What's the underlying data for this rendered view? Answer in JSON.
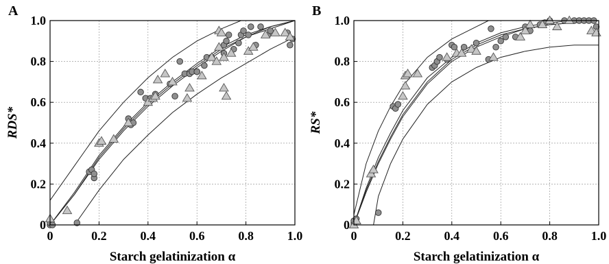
{
  "chart_data": [
    {
      "panel": "A",
      "type": "scatter",
      "xlabel": "Starch gelatinization α",
      "ylabel": "RDS*",
      "xlim": [
        0,
        1
      ],
      "ylim": [
        0,
        1
      ],
      "grid": true,
      "xticks": [
        "0",
        "0.2",
        "0.4",
        "0.6",
        "0.8",
        "1.0"
      ],
      "yticks": [
        "0",
        "0.2",
        "0.4",
        "0.6",
        "0.8",
        "1.0"
      ],
      "series": [
        {
          "marker": "circle",
          "points": [
            [
              0.0,
              0.0
            ],
            [
              0.0,
              0.01
            ],
            [
              0.01,
              0.0
            ],
            [
              0.11,
              0.01
            ],
            [
              0.16,
              0.26
            ],
            [
              0.17,
              0.27
            ],
            [
              0.18,
              0.23
            ],
            [
              0.18,
              0.25
            ],
            [
              0.32,
              0.52
            ],
            [
              0.33,
              0.49
            ],
            [
              0.33,
              0.5
            ],
            [
              0.34,
              0.5
            ],
            [
              0.37,
              0.65
            ],
            [
              0.39,
              0.62
            ],
            [
              0.41,
              0.62
            ],
            [
              0.43,
              0.64
            ],
            [
              0.49,
              0.69
            ],
            [
              0.51,
              0.63
            ],
            [
              0.53,
              0.8
            ],
            [
              0.55,
              0.74
            ],
            [
              0.57,
              0.74
            ],
            [
              0.58,
              0.75
            ],
            [
              0.6,
              0.75
            ],
            [
              0.6,
              0.75
            ],
            [
              0.63,
              0.78
            ],
            [
              0.64,
              0.82
            ],
            [
              0.66,
              0.82
            ],
            [
              0.71,
              0.84
            ],
            [
              0.71,
              0.88
            ],
            [
              0.72,
              0.9
            ],
            [
              0.73,
              0.93
            ],
            [
              0.75,
              0.86
            ],
            [
              0.77,
              0.89
            ],
            [
              0.78,
              0.93
            ],
            [
              0.79,
              0.95
            ],
            [
              0.81,
              0.93
            ],
            [
              0.82,
              0.97
            ],
            [
              0.84,
              0.88
            ],
            [
              0.86,
              0.97
            ],
            [
              0.89,
              0.93
            ],
            [
              0.9,
              0.95
            ],
            [
              0.97,
              0.94
            ],
            [
              0.98,
              0.88
            ],
            [
              0.99,
              0.91
            ]
          ]
        },
        {
          "marker": "triangle",
          "points": [
            [
              0.0,
              0.03
            ],
            [
              0.07,
              0.07
            ],
            [
              0.2,
              0.4
            ],
            [
              0.21,
              0.41
            ],
            [
              0.26,
              0.42
            ],
            [
              0.32,
              0.5
            ],
            [
              0.4,
              0.6
            ],
            [
              0.42,
              0.62
            ],
            [
              0.43,
              0.63
            ],
            [
              0.44,
              0.71
            ],
            [
              0.47,
              0.74
            ],
            [
              0.5,
              0.7
            ],
            [
              0.56,
              0.62
            ],
            [
              0.57,
              0.67
            ],
            [
              0.62,
              0.73
            ],
            [
              0.66,
              0.82
            ],
            [
              0.68,
              0.8
            ],
            [
              0.69,
              0.87
            ],
            [
              0.69,
              0.95
            ],
            [
              0.7,
              0.94
            ],
            [
              0.71,
              0.82
            ],
            [
              0.71,
              0.67
            ],
            [
              0.72,
              0.63
            ],
            [
              0.74,
              0.84
            ],
            [
              0.81,
              0.85
            ],
            [
              0.83,
              0.87
            ],
            [
              0.88,
              0.93
            ],
            [
              0.92,
              0.94
            ],
            [
              0.96,
              0.94
            ],
            [
              0.98,
              0.92
            ]
          ]
        }
      ],
      "curves": [
        [
          [
            0,
            0
          ],
          [
            0.1,
            0.15
          ],
          [
            0.2,
            0.33
          ],
          [
            0.3,
            0.47
          ],
          [
            0.4,
            0.59
          ],
          [
            0.5,
            0.69
          ],
          [
            0.6,
            0.78
          ],
          [
            0.7,
            0.86
          ],
          [
            0.8,
            0.92
          ],
          [
            0.9,
            0.97
          ],
          [
            1.0,
            1.0
          ]
        ],
        [
          [
            0,
            0
          ],
          [
            0.1,
            0.16
          ],
          [
            0.2,
            0.34
          ],
          [
            0.3,
            0.48
          ],
          [
            0.4,
            0.6
          ],
          [
            0.5,
            0.7
          ],
          [
            0.6,
            0.79
          ],
          [
            0.7,
            0.87
          ],
          [
            0.8,
            0.93
          ],
          [
            0.9,
            0.97
          ],
          [
            1.0,
            1.0
          ]
        ],
        [
          [
            0,
            0
          ],
          [
            0.1,
            0.15
          ],
          [
            0.2,
            0.32
          ],
          [
            0.3,
            0.46
          ],
          [
            0.4,
            0.58
          ],
          [
            0.5,
            0.68
          ],
          [
            0.6,
            0.77
          ],
          [
            0.7,
            0.85
          ],
          [
            0.8,
            0.92
          ],
          [
            0.9,
            0.96
          ],
          [
            1.0,
            1.0
          ]
        ],
        [
          [
            0,
            0.12
          ],
          [
            0.1,
            0.29
          ],
          [
            0.2,
            0.46
          ],
          [
            0.3,
            0.6
          ],
          [
            0.4,
            0.72
          ],
          [
            0.5,
            0.82
          ],
          [
            0.6,
            0.9
          ],
          [
            0.7,
            0.96
          ],
          [
            0.78,
            1.0
          ]
        ],
        [
          [
            0.1,
            0.0
          ],
          [
            0.2,
            0.17
          ],
          [
            0.3,
            0.32
          ],
          [
            0.4,
            0.44
          ],
          [
            0.5,
            0.55
          ],
          [
            0.6,
            0.64
          ],
          [
            0.7,
            0.72
          ],
          [
            0.8,
            0.79
          ],
          [
            0.9,
            0.86
          ],
          [
            1.0,
            0.92
          ]
        ]
      ]
    },
    {
      "panel": "B",
      "type": "scatter",
      "xlabel": "Starch gelatinization α",
      "ylabel": "RS*",
      "xlim": [
        0,
        1
      ],
      "ylim": [
        0,
        1
      ],
      "grid": true,
      "xticks": [
        "0",
        "0.2",
        "0.4",
        "0.6",
        "0.8",
        "1.0"
      ],
      "yticks": [
        "0",
        "0.2",
        "0.4",
        "0.6",
        "0.8",
        "1.0"
      ],
      "series": [
        {
          "marker": "circle",
          "points": [
            [
              0.0,
              0.0
            ],
            [
              0.0,
              0.01
            ],
            [
              0.0,
              0.02
            ],
            [
              0.01,
              0.03
            ],
            [
              0.1,
              0.06
            ],
            [
              0.16,
              0.58
            ],
            [
              0.17,
              0.57
            ],
            [
              0.18,
              0.59
            ],
            [
              0.32,
              0.77
            ],
            [
              0.33,
              0.78
            ],
            [
              0.34,
              0.8
            ],
            [
              0.35,
              0.82
            ],
            [
              0.38,
              0.81
            ],
            [
              0.4,
              0.88
            ],
            [
              0.41,
              0.87
            ],
            [
              0.45,
              0.87
            ],
            [
              0.5,
              0.89
            ],
            [
              0.55,
              0.81
            ],
            [
              0.56,
              0.96
            ],
            [
              0.58,
              0.87
            ],
            [
              0.6,
              0.9
            ],
            [
              0.62,
              0.92
            ],
            [
              0.66,
              0.92
            ],
            [
              0.7,
              0.97
            ],
            [
              0.72,
              0.95
            ],
            [
              0.76,
              0.98
            ],
            [
              0.78,
              0.99
            ],
            [
              0.8,
              1.0
            ],
            [
              0.86,
              1.0
            ],
            [
              0.9,
              1.0
            ],
            [
              0.92,
              1.0
            ],
            [
              0.94,
              1.0
            ],
            [
              0.96,
              1.0
            ],
            [
              0.98,
              1.0
            ],
            [
              0.99,
              0.97
            ]
          ]
        },
        {
          "marker": "triangle",
          "points": [
            [
              0.0,
              0.0
            ],
            [
              0.01,
              0.02
            ],
            [
              0.07,
              0.25
            ],
            [
              0.08,
              0.27
            ],
            [
              0.2,
              0.63
            ],
            [
              0.21,
              0.68
            ],
            [
              0.21,
              0.73
            ],
            [
              0.22,
              0.74
            ],
            [
              0.26,
              0.74
            ],
            [
              0.38,
              0.82
            ],
            [
              0.42,
              0.84
            ],
            [
              0.44,
              0.84
            ],
            [
              0.48,
              0.86
            ],
            [
              0.5,
              0.85
            ],
            [
              0.57,
              0.82
            ],
            [
              0.68,
              0.92
            ],
            [
              0.7,
              0.95
            ],
            [
              0.72,
              0.98
            ],
            [
              0.77,
              0.98
            ],
            [
              0.8,
              1.0
            ],
            [
              0.83,
              0.97
            ],
            [
              0.88,
              1.0
            ],
            [
              0.97,
              0.95
            ],
            [
              0.99,
              0.94
            ]
          ]
        }
      ],
      "curves": [
        [
          [
            0,
            0
          ],
          [
            0.05,
            0.17
          ],
          [
            0.1,
            0.31
          ],
          [
            0.15,
            0.43
          ],
          [
            0.2,
            0.54
          ],
          [
            0.3,
            0.7
          ],
          [
            0.4,
            0.81
          ],
          [
            0.5,
            0.88
          ],
          [
            0.6,
            0.93
          ],
          [
            0.7,
            0.96
          ],
          [
            0.8,
            0.98
          ],
          [
            0.9,
            0.99
          ],
          [
            1.0,
            1.0
          ]
        ],
        [
          [
            0,
            0
          ],
          [
            0.05,
            0.18
          ],
          [
            0.1,
            0.33
          ],
          [
            0.15,
            0.45
          ],
          [
            0.2,
            0.56
          ],
          [
            0.3,
            0.72
          ],
          [
            0.4,
            0.82
          ],
          [
            0.5,
            0.89
          ],
          [
            0.6,
            0.94
          ],
          [
            0.7,
            0.97
          ],
          [
            0.8,
            0.99
          ],
          [
            0.9,
            1.0
          ],
          [
            1.0,
            1.0
          ]
        ],
        [
          [
            0,
            0
          ],
          [
            0.05,
            0.16
          ],
          [
            0.1,
            0.3
          ],
          [
            0.15,
            0.42
          ],
          [
            0.2,
            0.53
          ],
          [
            0.3,
            0.69
          ],
          [
            0.4,
            0.8
          ],
          [
            0.5,
            0.87
          ],
          [
            0.6,
            0.92
          ],
          [
            0.7,
            0.96
          ],
          [
            0.8,
            0.98
          ],
          [
            0.9,
            0.99
          ],
          [
            1.0,
            1.0
          ]
        ],
        [
          [
            0,
            0.05
          ],
          [
            0.05,
            0.3
          ],
          [
            0.1,
            0.46
          ],
          [
            0.15,
            0.58
          ],
          [
            0.2,
            0.68
          ],
          [
            0.3,
            0.82
          ],
          [
            0.4,
            0.91
          ],
          [
            0.5,
            0.97
          ],
          [
            0.55,
            1.0
          ]
        ],
        [
          [
            0.08,
            0.0
          ],
          [
            0.1,
            0.14
          ],
          [
            0.15,
            0.3
          ],
          [
            0.2,
            0.42
          ],
          [
            0.3,
            0.59
          ],
          [
            0.4,
            0.7
          ],
          [
            0.5,
            0.77
          ],
          [
            0.6,
            0.82
          ],
          [
            0.7,
            0.85
          ],
          [
            0.8,
            0.87
          ],
          [
            0.9,
            0.88
          ],
          [
            1.0,
            0.88
          ]
        ]
      ]
    }
  ]
}
